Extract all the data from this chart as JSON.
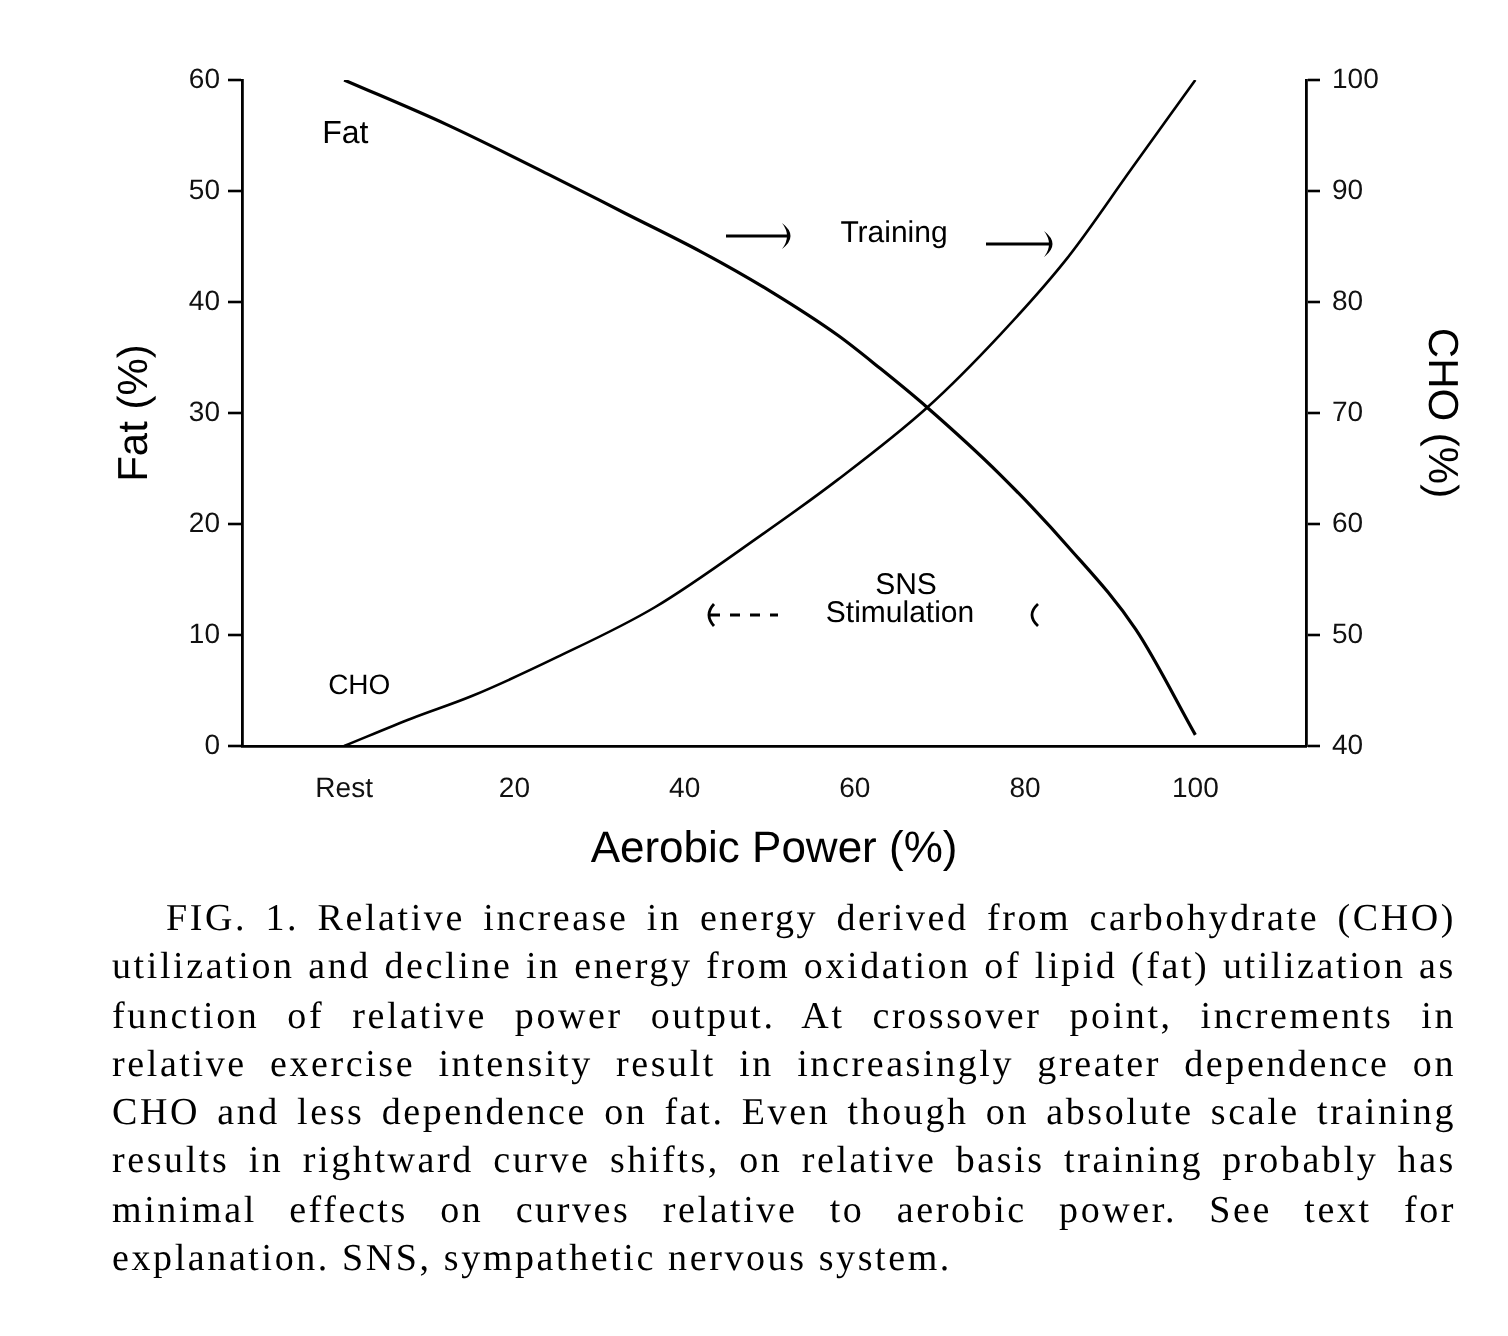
{
  "chart_data": {
    "type": "line",
    "xlabel": "Aerobic Power (%)",
    "ylabel": "Fat (%)",
    "y2label": "CHO (%)",
    "xlim": [
      -12,
      113
    ],
    "xticks": [
      {
        "value": 0,
        "label": "Rest"
      },
      20,
      40,
      60,
      80,
      100
    ],
    "ylim": [
      0,
      60
    ],
    "yticks": [
      0,
      10,
      20,
      30,
      40,
      50,
      60
    ],
    "y2lim": [
      40,
      100
    ],
    "y2ticks": [
      40,
      50,
      60,
      70,
      80,
      90,
      100
    ],
    "series": [
      {
        "name": "Fat",
        "color": "#000000",
        "x": [
          0,
          12,
          24,
          33,
          42,
          50,
          58,
          63,
          68.5,
          77,
          85,
          93,
          100
        ],
        "values": [
          60,
          56,
          51.5,
          48,
          44.5,
          41,
          37,
          34,
          30.5,
          24.5,
          18,
          10.5,
          1
        ]
      },
      {
        "name": "CHO",
        "color": "#000000",
        "axis": "y2",
        "x": [
          0,
          8,
          15,
          25,
          36.5,
          49,
          58,
          68.5,
          77,
          85,
          92.5,
          100
        ],
        "values": [
          40,
          42.5,
          44.5,
          48,
          52.5,
          59,
          64,
          70.5,
          77,
          84,
          92,
          100
        ]
      }
    ],
    "annotations": [
      "Training",
      "SNS",
      "Stimulation",
      "FIG. 1. Relative increase in energy derived from carbohydrate (CHO) utilization and decline in energy from oxidation of lipid (fat) utilization as function of relative power output. At crossover point, increments in relative exercise intensity result in increasingly greater dependence on CHO and less dependence on fat. Even though on absolute scale training results in rightward curve shifts, on relative basis training probably has minimal effects on curves relative to aerobic power. See text for explanation. SNS, sympathetic nervous system."
    ]
  }
}
